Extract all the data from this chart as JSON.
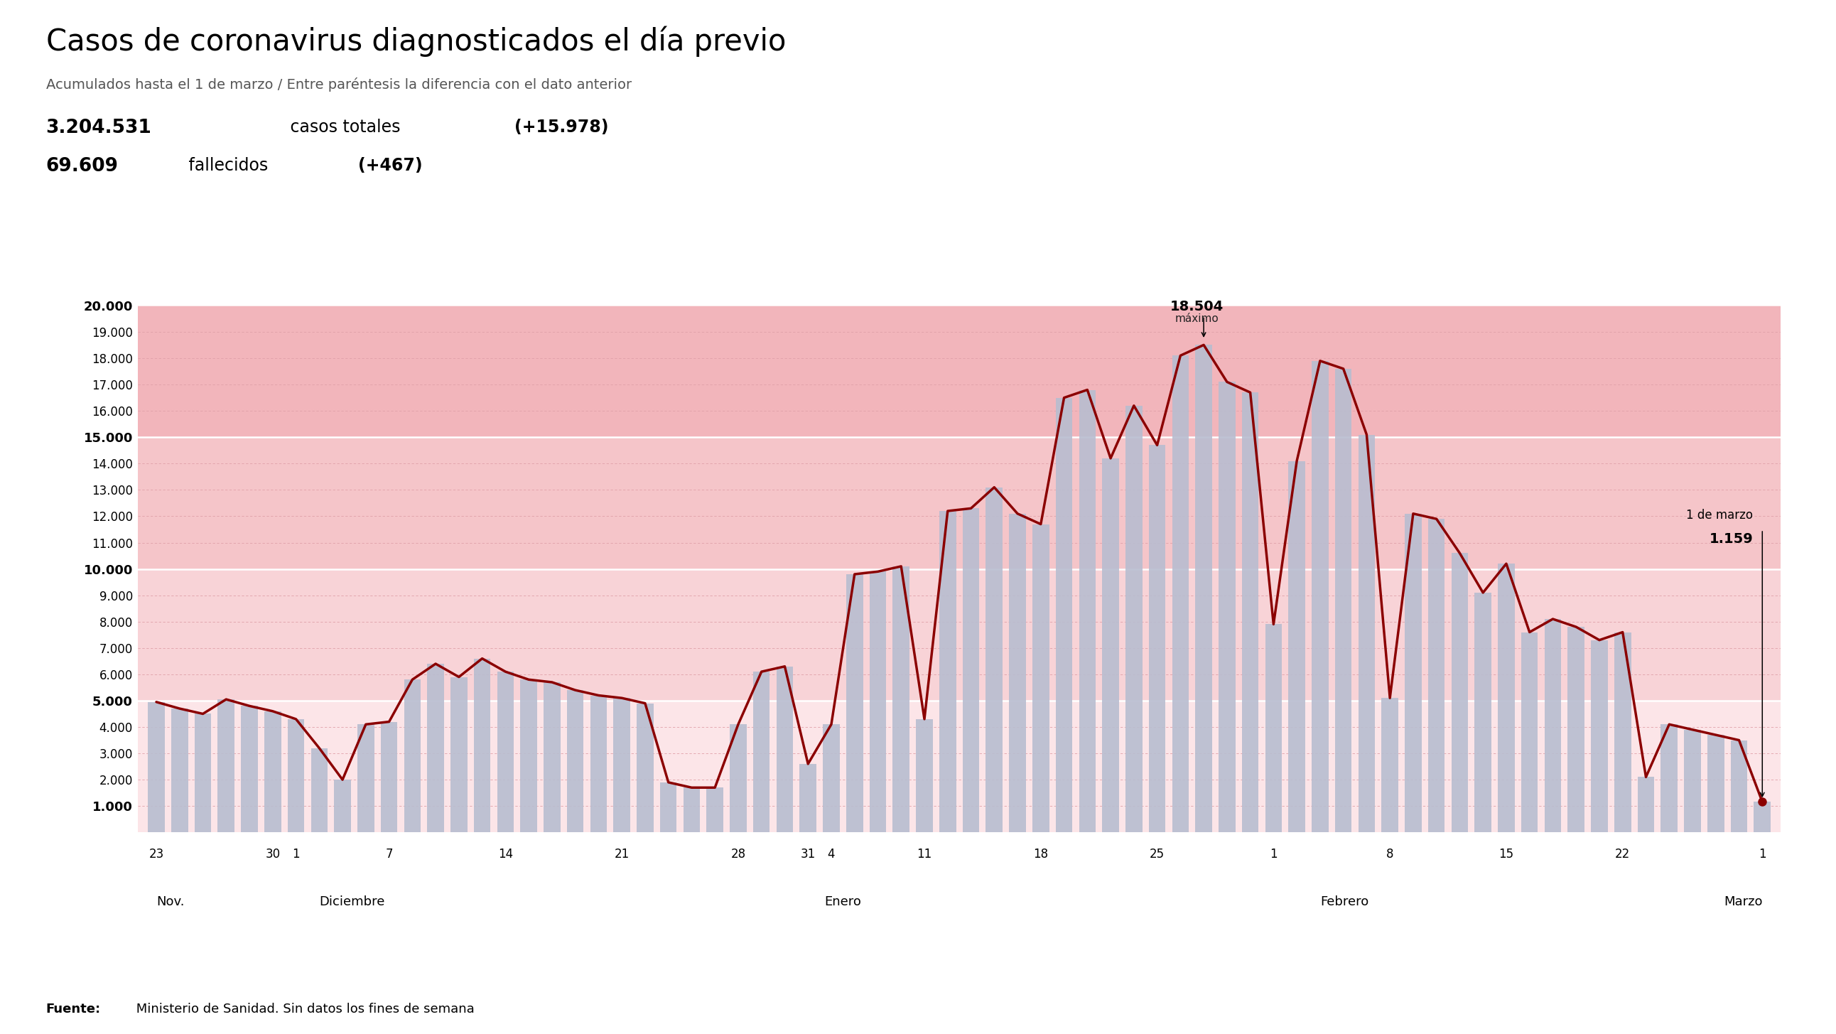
{
  "title": "Casos de coronavirus diagnosticados el día previo",
  "subtitle": "Acumulados hasta el 1 de marzo / Entre paréntesis la diferencia con el dato anterior",
  "stat1_bold": "3.204.531",
  "stat1_rest": " casos totales ",
  "stat1_paren": "(+15.978)",
  "stat2_bold": "69.609",
  "stat2_rest": " fallecidos ",
  "stat2_paren": "(+467)",
  "background_color": "#ffffff",
  "band_colors": [
    "#f2b8be",
    "#f5c8cc",
    "#f8d5d8",
    "#fce8ea"
  ],
  "bar_color": "#b8bdd0",
  "line_color": "#8b0000",
  "gridline_color": "#e8a0a8",
  "source_bold": "Fuente:",
  "source_rest": " Ministerio de Sanidad. Sin datos los fines de semana",
  "max_label": "18.504",
  "max_label_sub": "máximo",
  "last_label": "1.159",
  "last_date_label": "1 de marzo",
  "yticks": [
    1000,
    2000,
    3000,
    4000,
    5000,
    6000,
    7000,
    8000,
    9000,
    10000,
    11000,
    12000,
    13000,
    14000,
    15000,
    16000,
    17000,
    18000,
    19000,
    20000
  ],
  "yticks_bold": [
    1000,
    5000,
    10000,
    15000,
    20000
  ],
  "values": [
    4950,
    4700,
    4500,
    5050,
    4800,
    4600,
    4300,
    3200,
    2000,
    4100,
    4200,
    5800,
    6400,
    5900,
    6600,
    6100,
    5800,
    5700,
    5400,
    5200,
    5100,
    4900,
    1900,
    1700,
    1700,
    4100,
    6100,
    6300,
    2600,
    4100,
    9800,
    9900,
    10100,
    4300,
    12200,
    12300,
    13100,
    12100,
    11700,
    16500,
    16800,
    14200,
    16200,
    14700,
    18100,
    18504,
    17100,
    16700,
    7900,
    14100,
    17900,
    17600,
    15100,
    5100,
    12100,
    11900,
    10600,
    9100,
    10200,
    7600,
    8100,
    7800,
    7300,
    7600,
    2100,
    4100,
    3900,
    3700,
    3500,
    1159
  ],
  "tick_positions": [
    0,
    5,
    6,
    10,
    15,
    20,
    25,
    28,
    29,
    33,
    38,
    43,
    48,
    53,
    58,
    63,
    69
  ],
  "tick_labels": [
    "23",
    "30",
    "1",
    "7",
    "14",
    "21",
    "28",
    "31",
    "4",
    "11",
    "18",
    "25",
    "1",
    "8",
    "15",
    "22",
    "1"
  ],
  "month_positions": [
    0,
    7,
    29.5,
    50,
    69
  ],
  "month_labels": [
    "Nov.",
    "Diciembre",
    "Enero",
    "Febrero",
    "Marzo"
  ],
  "month_ha": [
    "left",
    "left",
    "center",
    "left",
    "right"
  ]
}
